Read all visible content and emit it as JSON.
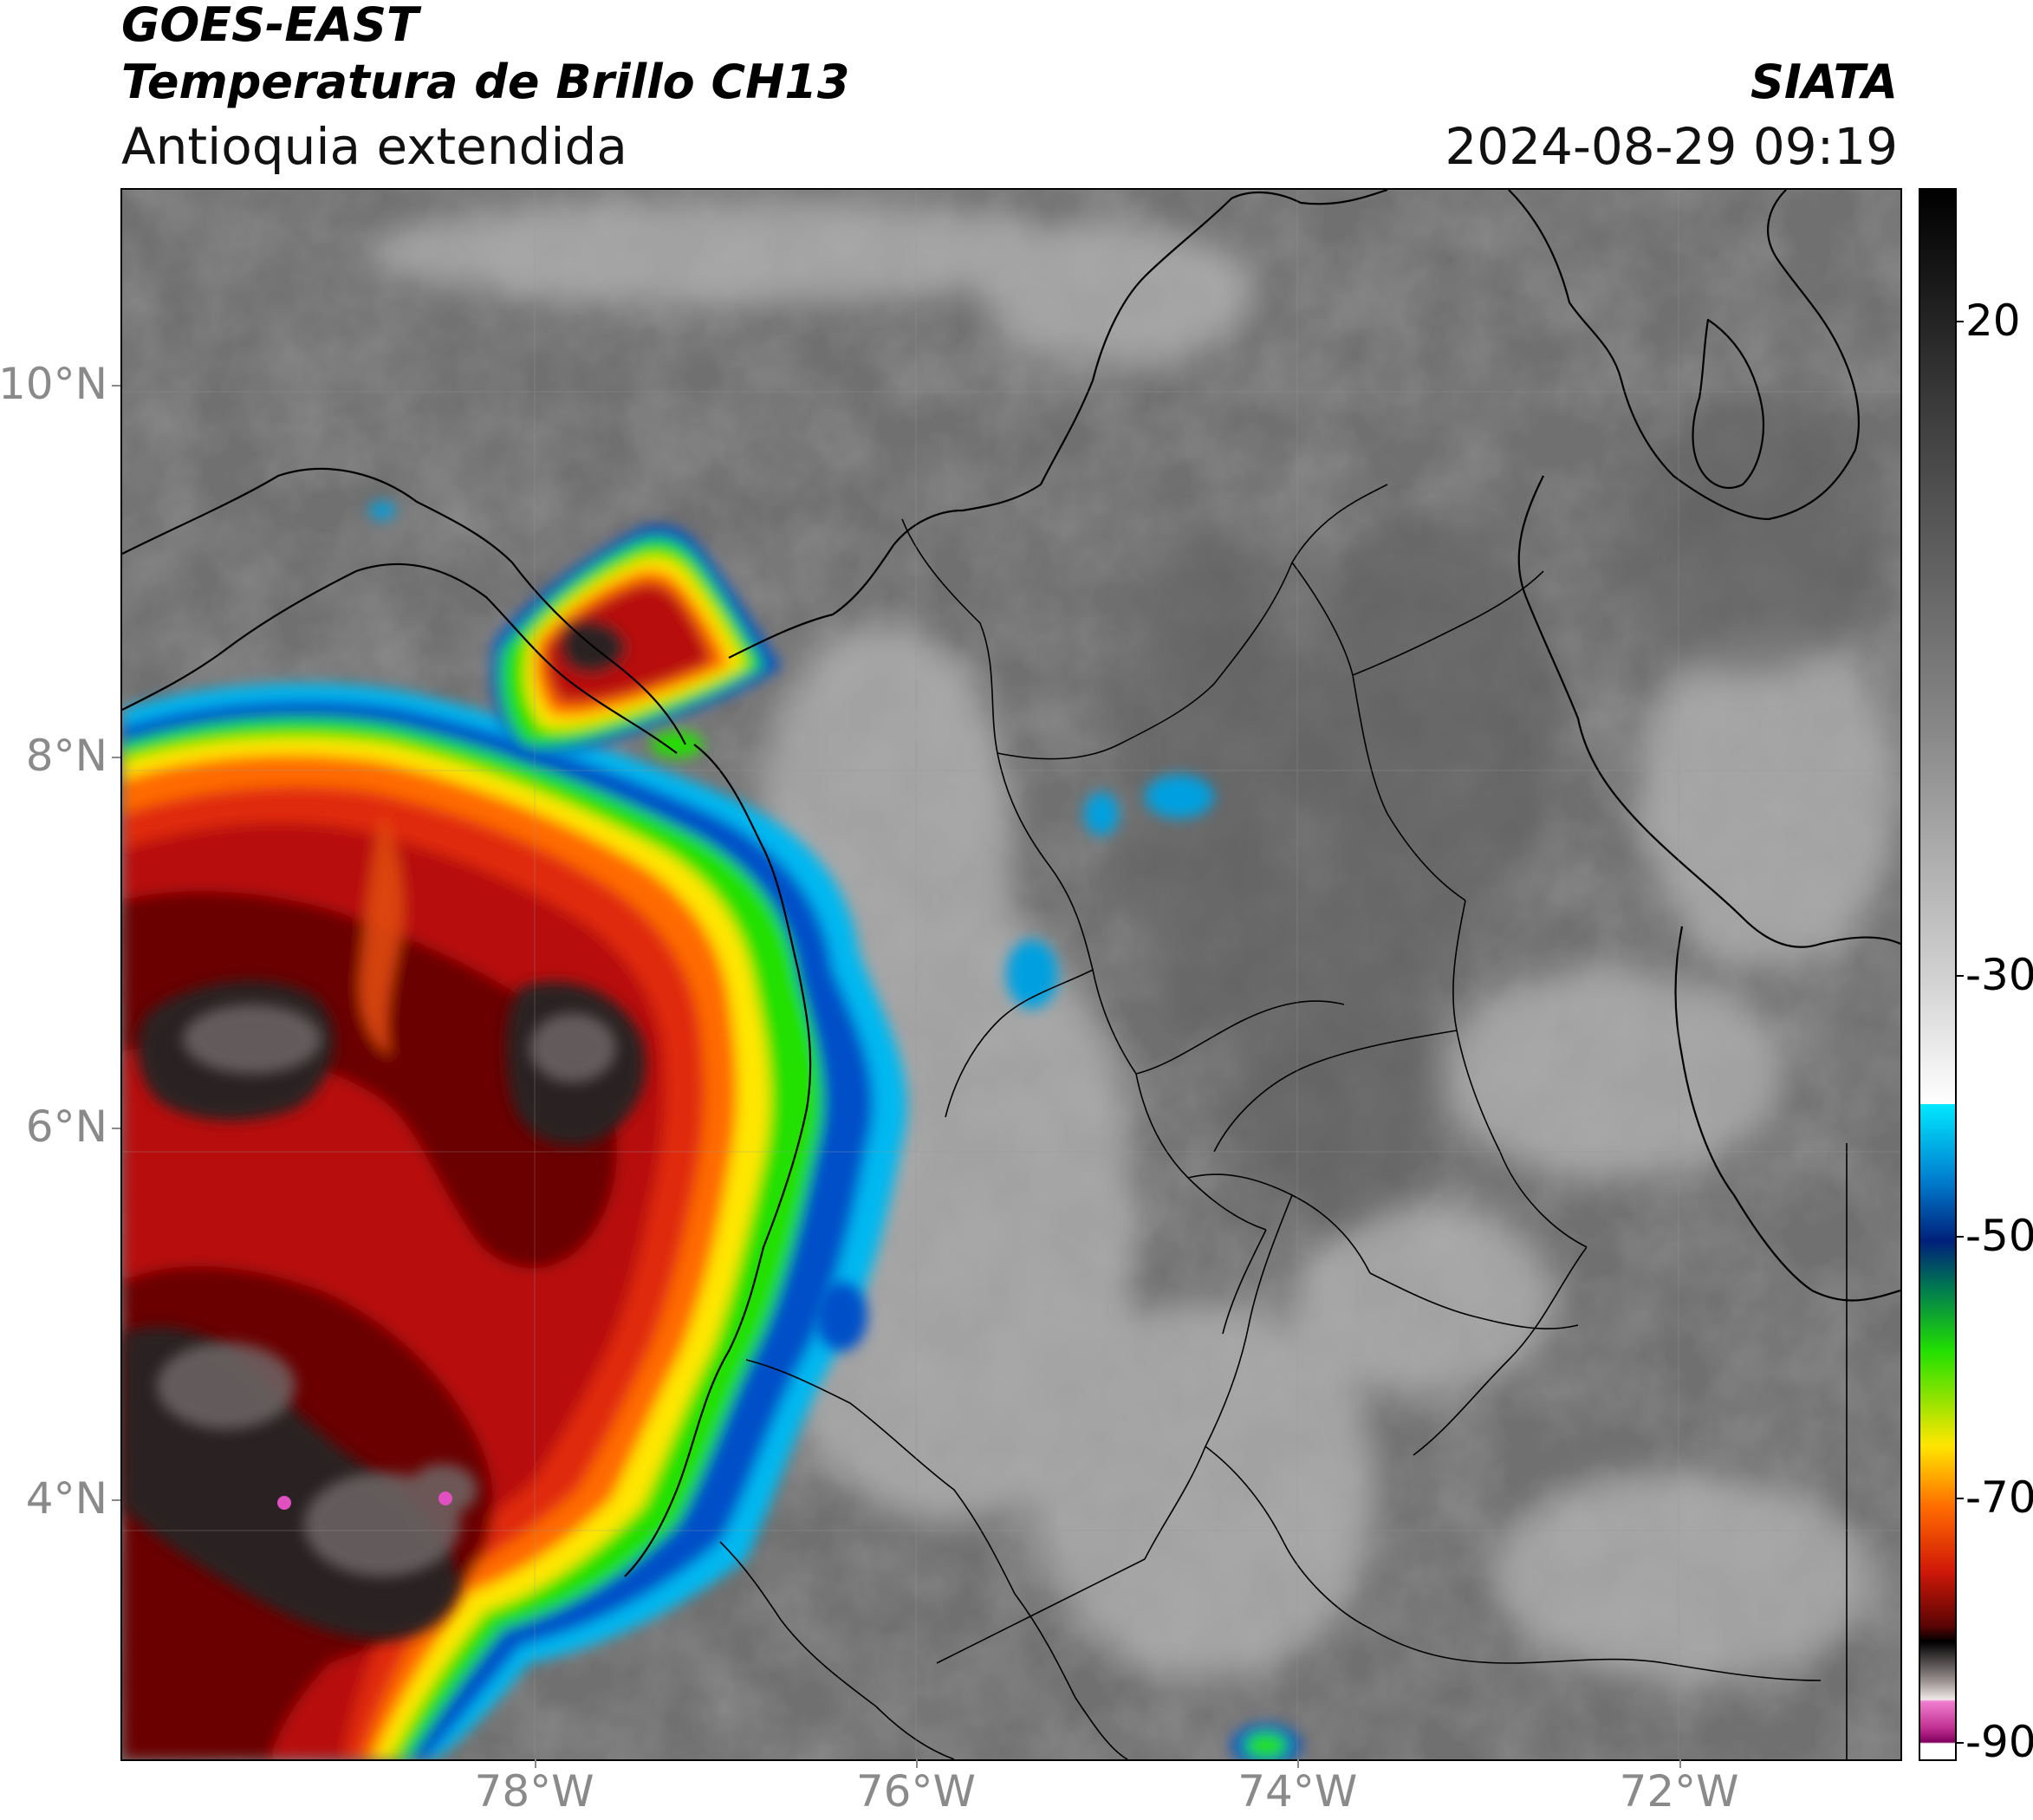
{
  "header": {
    "satellite": "GOES-EAST",
    "product": "Temperatura de Brillo CH13",
    "region": "Antioquia extendida",
    "organization": "SIATA",
    "datetime": "2024-08-29 09:19"
  },
  "map": {
    "lon_range": [
      -80.16,
      -70.84
    ],
    "lat_range": [
      2.6,
      11.05
    ],
    "lat_ticks": [
      {
        "value": 10,
        "label": "10°N"
      },
      {
        "value": 8,
        "label": "8°N"
      },
      {
        "value": 6,
        "label": "6°N"
      },
      {
        "value": 4,
        "label": "4°N"
      }
    ],
    "lon_ticks": [
      {
        "value": -78,
        "label": "78°W"
      },
      {
        "value": -76,
        "label": "76°W"
      },
      {
        "value": -74,
        "label": "74°W"
      },
      {
        "value": -72,
        "label": "72°W"
      }
    ],
    "colors": {
      "background_gray": "#7a7a7a",
      "deep_convection_red": "#b80f0a",
      "coldest_core": "#2a2222",
      "orange": "#ff6a00",
      "yellow": "#ffe600",
      "green": "#22e000",
      "blue": "#0050c8",
      "cyan": "#00c8ff",
      "boundaries": "#000000"
    }
  },
  "colorbar": {
    "range": [
      -90,
      30
    ],
    "ticks": [
      {
        "value": 20,
        "label": "20"
      },
      {
        "value": -30,
        "label": "-30"
      },
      {
        "value": -50,
        "label": "-50"
      },
      {
        "value": -70,
        "label": "-70"
      },
      {
        "value": -90,
        "label": "-90"
      }
    ]
  }
}
